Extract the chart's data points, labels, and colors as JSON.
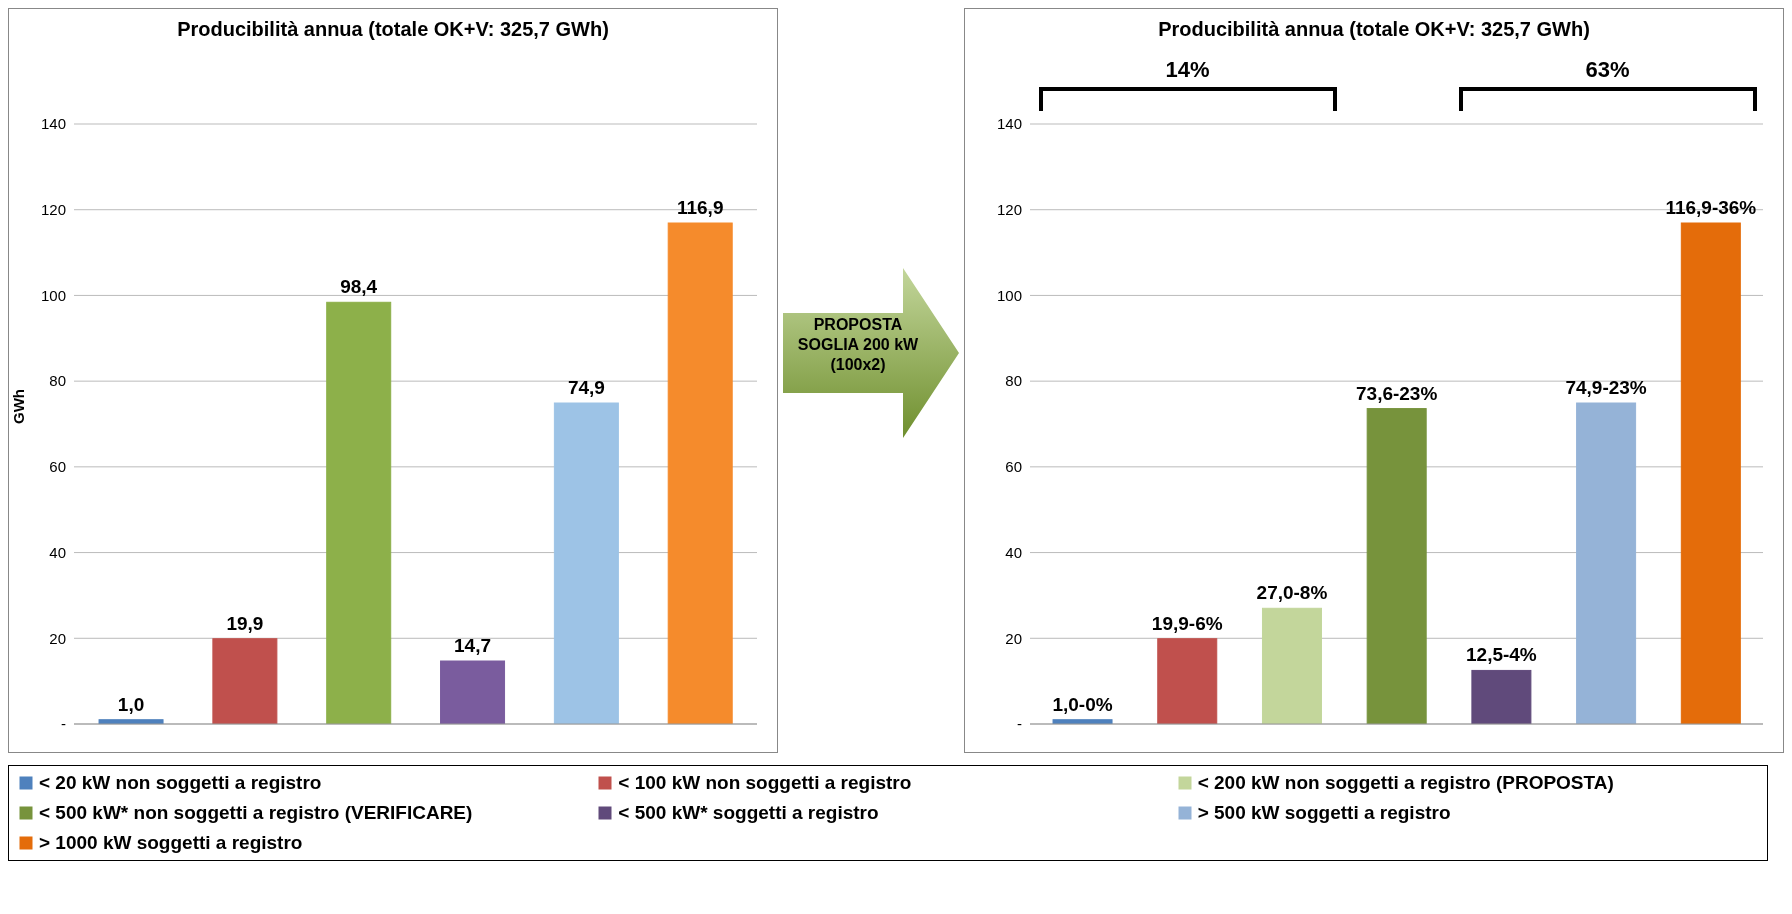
{
  "chart_data": [
    {
      "type": "bar",
      "title": "Producibilità annua (totale OK+V: 325,7 GWh)",
      "ylabel": "GWh",
      "categories": [
        null,
        null,
        null,
        null,
        null,
        null
      ],
      "ylim": [
        0,
        140
      ],
      "yticks": [
        {
          "value": 0,
          "label": "-"
        },
        20,
        40,
        60,
        80,
        100,
        120,
        140
      ],
      "grid": "y",
      "series": [
        {
          "color": "#4f81bd",
          "values": [
            1.0,
            null,
            null,
            null,
            null,
            null
          ],
          "value_labels": [
            "1,0",
            null,
            null,
            null,
            null,
            null
          ]
        },
        {
          "color": "#c0504d",
          "values": [
            null,
            19.9,
            null,
            null,
            null,
            null
          ],
          "value_labels": [
            null,
            "19,9",
            null,
            null,
            null,
            null
          ]
        },
        {
          "color": "#8db04a",
          "values": [
            null,
            null,
            98.4,
            null,
            null,
            null
          ],
          "value_labels": [
            null,
            null,
            "98,4",
            null,
            null,
            null
          ]
        },
        {
          "color": "#7a5c9e",
          "values": [
            null,
            null,
            null,
            14.7,
            null,
            null
          ],
          "value_labels": [
            null,
            null,
            null,
            "14,7",
            null,
            null
          ]
        },
        {
          "color": "#9dc3e6",
          "values": [
            null,
            null,
            null,
            null,
            74.9,
            null
          ],
          "value_labels": [
            null,
            null,
            null,
            null,
            "74,9",
            null
          ]
        },
        {
          "color": "#f58b2c",
          "values": [
            null,
            null,
            null,
            null,
            null,
            116.9
          ],
          "value_labels": [
            null,
            null,
            null,
            null,
            null,
            "116,9"
          ]
        }
      ],
      "annotations": [
        "PROPOSTA SOGLIA 200 kW (100x2)"
      ]
    },
    {
      "type": "bar",
      "title": "Producibilità annua (totale OK+V: 325,7 GWh)",
      "categories": [
        null,
        null,
        null,
        null,
        null,
        null,
        null
      ],
      "ylim": [
        0,
        140
      ],
      "yticks": [
        {
          "value": 0,
          "label": "-"
        },
        20,
        40,
        60,
        80,
        100,
        120,
        140
      ],
      "grid": "y",
      "legend": "bottom",
      "series": [
        {
          "name": "< 20 kW non soggetti a registro",
          "color": "#4f81bd",
          "values": [
            1.0,
            null,
            null,
            null,
            null,
            null,
            null
          ],
          "value_labels": [
            "1,0-0%",
            null,
            null,
            null,
            null,
            null,
            null
          ]
        },
        {
          "name": "< 100 kW non soggetti a registro",
          "color": "#c0504d",
          "values": [
            null,
            19.9,
            null,
            null,
            null,
            null,
            null
          ],
          "value_labels": [
            null,
            "19,9-6%",
            null,
            null,
            null,
            null,
            null
          ]
        },
        {
          "name": "< 200 kW non soggetti a registro (PROPOSTA)",
          "color": "#c3d69b",
          "values": [
            null,
            null,
            27.0,
            null,
            null,
            null,
            null
          ],
          "value_labels": [
            null,
            null,
            "27,0-8%",
            null,
            null,
            null,
            null
          ]
        },
        {
          "name": "< 500 kW* non soggetti a registro (VERIFICARE)",
          "color": "#77933c",
          "values": [
            null,
            null,
            null,
            73.6,
            null,
            null,
            null
          ],
          "value_labels": [
            null,
            null,
            null,
            "73,6-23%",
            null,
            null,
            null
          ]
        },
        {
          "name": "< 500 kW* soggetti a registro",
          "color": "#604a7b",
          "values": [
            null,
            null,
            null,
            null,
            12.5,
            null,
            null
          ],
          "value_labels": [
            null,
            null,
            null,
            null,
            "12,5-4%",
            null,
            null
          ]
        },
        {
          "name": "> 500 kW soggetti a registro",
          "color": "#95b3d7",
          "values": [
            null,
            null,
            null,
            null,
            null,
            74.9,
            null
          ],
          "value_labels": [
            null,
            null,
            null,
            null,
            null,
            "74,9-23%",
            null
          ]
        },
        {
          "name": "> 1000 kW soggetti a registro",
          "color": "#e46c0a",
          "values": [
            null,
            null,
            null,
            null,
            null,
            null,
            116.9
          ],
          "value_labels": [
            null,
            null,
            null,
            null,
            null,
            null,
            "116,9-36%"
          ]
        }
      ],
      "annotations": [
        "14%",
        "63%"
      ]
    }
  ]
}
